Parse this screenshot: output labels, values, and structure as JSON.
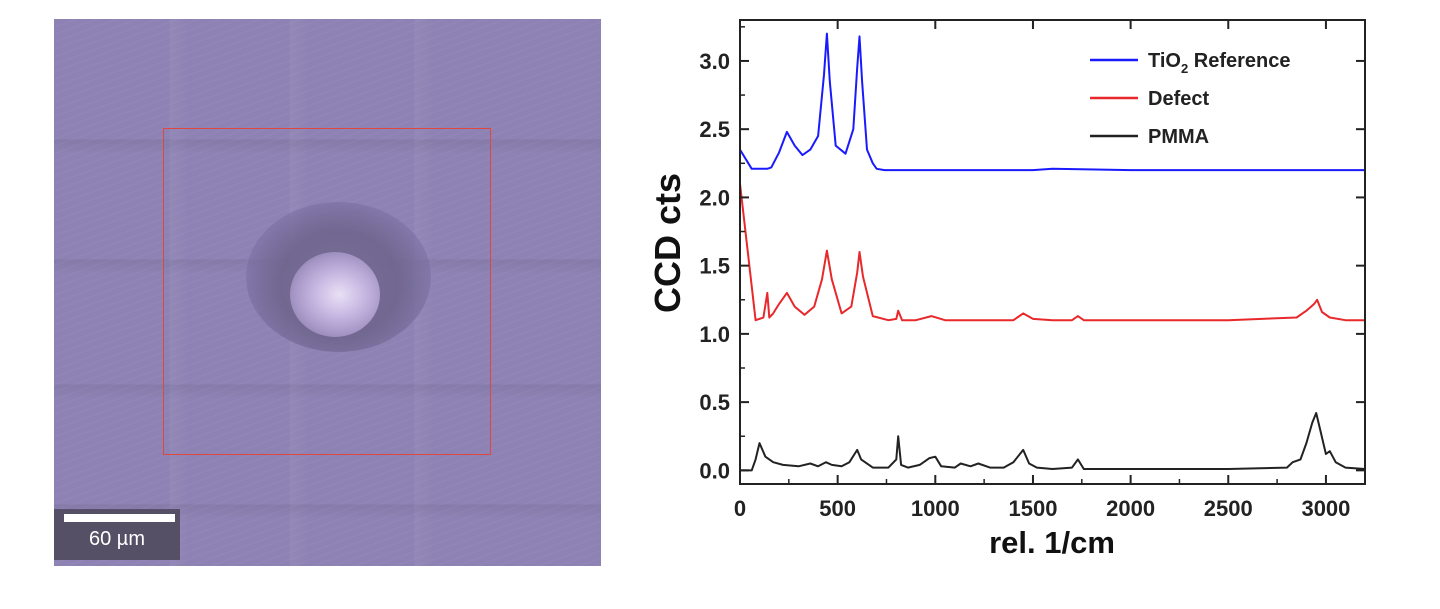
{
  "micrograph": {
    "scale_bar_label": "60 µm"
  },
  "chart_data": {
    "type": "line",
    "title": "",
    "xlabel": "rel. 1/cm",
    "ylabel": "CCD cts",
    "xlim": [
      0,
      3200
    ],
    "ylim": [
      -0.1,
      3.3
    ],
    "x_ticks": [
      0,
      500,
      1000,
      1500,
      2000,
      2500,
      3000
    ],
    "y_ticks": [
      0.0,
      0.5,
      1.0,
      1.5,
      2.0,
      2.5,
      3.0
    ],
    "x_tick_labels": [
      "0",
      "500",
      "1000",
      "1500",
      "2000",
      "2500",
      "3000"
    ],
    "y_tick_labels": [
      "0.0",
      "0.5",
      "1.0",
      "1.5",
      "2.0",
      "2.5",
      "3.0"
    ],
    "grid": false,
    "legend_position": "top-right",
    "series": [
      {
        "name": "TiO2 Reference",
        "legend_main": "TiO",
        "legend_sub": "2",
        "legend_rest": " Reference",
        "color": "#1a1aff",
        "x": [
          0,
          60,
          100,
          140,
          160,
          200,
          240,
          280,
          320,
          360,
          400,
          430,
          445,
          460,
          490,
          540,
          580,
          600,
          612,
          625,
          650,
          680,
          700,
          740,
          1000,
          1500,
          1600,
          2000,
          2500,
          3000,
          3200
        ],
        "y": [
          2.35,
          2.21,
          2.21,
          2.21,
          2.22,
          2.33,
          2.48,
          2.38,
          2.31,
          2.35,
          2.45,
          2.9,
          3.2,
          2.85,
          2.38,
          2.32,
          2.5,
          2.95,
          3.18,
          2.85,
          2.35,
          2.25,
          2.21,
          2.2,
          2.2,
          2.2,
          2.21,
          2.2,
          2.2,
          2.2,
          2.2
        ]
      },
      {
        "name": "Defect",
        "color": "#e8282a",
        "x": [
          0,
          80,
          120,
          140,
          150,
          170,
          200,
          240,
          280,
          330,
          380,
          420,
          445,
          470,
          520,
          570,
          600,
          612,
          630,
          680,
          760,
          800,
          810,
          830,
          900,
          980,
          1050,
          1300,
          1400,
          1450,
          1500,
          1600,
          1700,
          1730,
          1760,
          2000,
          2500,
          2850,
          2900,
          2940,
          2955,
          2980,
          3020,
          3100,
          3200
        ],
        "y": [
          2.1,
          1.1,
          1.12,
          1.3,
          1.12,
          1.15,
          1.22,
          1.3,
          1.2,
          1.14,
          1.2,
          1.4,
          1.61,
          1.4,
          1.15,
          1.2,
          1.45,
          1.6,
          1.42,
          1.13,
          1.1,
          1.11,
          1.17,
          1.1,
          1.1,
          1.13,
          1.1,
          1.1,
          1.1,
          1.15,
          1.11,
          1.1,
          1.1,
          1.13,
          1.1,
          1.1,
          1.1,
          1.12,
          1.17,
          1.22,
          1.25,
          1.16,
          1.12,
          1.1,
          1.1
        ]
      },
      {
        "name": "PMMA",
        "color": "#222222",
        "x": [
          0,
          60,
          80,
          100,
          130,
          170,
          220,
          300,
          360,
          400,
          440,
          470,
          520,
          560,
          600,
          620,
          680,
          760,
          800,
          810,
          825,
          860,
          920,
          970,
          1000,
          1030,
          1100,
          1130,
          1180,
          1220,
          1280,
          1350,
          1400,
          1450,
          1480,
          1520,
          1600,
          1700,
          1730,
          1760,
          1900,
          2200,
          2500,
          2800,
          2830,
          2870,
          2900,
          2930,
          2950,
          2970,
          3000,
          3020,
          3050,
          3100,
          3200
        ],
        "y": [
          0.0,
          0.0,
          0.08,
          0.2,
          0.1,
          0.06,
          0.04,
          0.03,
          0.05,
          0.03,
          0.06,
          0.04,
          0.03,
          0.06,
          0.15,
          0.08,
          0.02,
          0.02,
          0.08,
          0.25,
          0.04,
          0.02,
          0.04,
          0.09,
          0.1,
          0.03,
          0.02,
          0.05,
          0.03,
          0.05,
          0.02,
          0.02,
          0.06,
          0.15,
          0.05,
          0.02,
          0.01,
          0.02,
          0.08,
          0.01,
          0.01,
          0.01,
          0.01,
          0.02,
          0.06,
          0.08,
          0.2,
          0.35,
          0.42,
          0.3,
          0.12,
          0.14,
          0.06,
          0.02,
          0.01
        ]
      }
    ]
  }
}
